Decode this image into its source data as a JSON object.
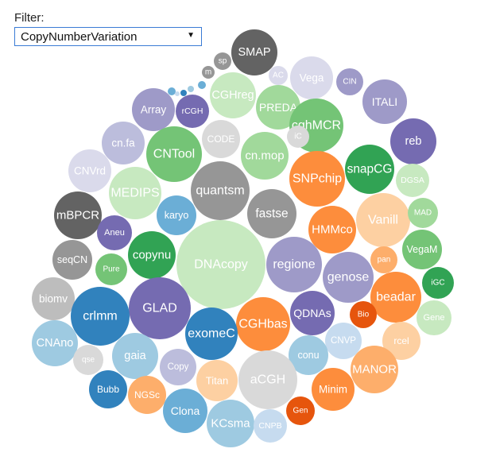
{
  "filter": {
    "label": "Filter:",
    "selected": "CopyNumberVariation"
  },
  "chart_data": {
    "type": "bubble",
    "bubbles": [
      {
        "label": "SMAP",
        "color": "#636363"
      },
      {
        "label": "sp",
        "color": "#969696"
      },
      {
        "label": "m",
        "color": "#969696"
      },
      {
        "label": "AC",
        "color": "#dadaeb"
      },
      {
        "label": "Vega",
        "color": "#dadaeb"
      },
      {
        "label": "CIN",
        "color": "#9e9ac8"
      },
      {
        "label": "ITALI",
        "color": "#9e9ac8"
      },
      {
        "label": "CGHreg",
        "color": "#c7e9c0"
      },
      {
        "label": "PREDA",
        "color": "#a1d99b"
      },
      {
        "label": "Array",
        "color": "#9e9ac8"
      },
      {
        "label": "rCGH",
        "color": "#756bb1"
      },
      {
        "label": "cghMCR",
        "color": "#74c476"
      },
      {
        "label": "reb",
        "color": "#756bb1"
      },
      {
        "label": "cn.fa",
        "color": "#bcbddc"
      },
      {
        "label": "CODE",
        "color": "#d9d9d9"
      },
      {
        "label": "iC",
        "color": "#d9d9d9"
      },
      {
        "label": "CNTool",
        "color": "#74c476"
      },
      {
        "label": "cn.mop",
        "color": "#a1d99b"
      },
      {
        "label": "CNVrd",
        "color": "#dadaeb"
      },
      {
        "label": "SNPchip",
        "color": "#fd8d3c"
      },
      {
        "label": "snapCG",
        "color": "#31a354"
      },
      {
        "label": "DGSA",
        "color": "#c7e9c0"
      },
      {
        "label": "MEDIPS",
        "color": "#c7e9c0"
      },
      {
        "label": "quantsm",
        "color": "#969696"
      },
      {
        "label": "mBPCR",
        "color": "#636363"
      },
      {
        "label": "karyo",
        "color": "#6baed6"
      },
      {
        "label": "fastse",
        "color": "#969696"
      },
      {
        "label": "Vanill",
        "color": "#fdd0a2"
      },
      {
        "label": "MAD",
        "color": "#a1d99b"
      },
      {
        "label": "Aneu",
        "color": "#756bb1"
      },
      {
        "label": "HMMco",
        "color": "#fd8d3c"
      },
      {
        "label": "seqCN",
        "color": "#969696"
      },
      {
        "label": "copynu",
        "color": "#31a354"
      },
      {
        "label": "DNAcopy",
        "color": "#c7e9c0"
      },
      {
        "label": "regione",
        "color": "#9e9ac8"
      },
      {
        "label": "pan",
        "color": "#fdae6b"
      },
      {
        "label": "VegaM",
        "color": "#74c476"
      },
      {
        "label": "Pure",
        "color": "#74c476"
      },
      {
        "label": "genose",
        "color": "#9e9ac8"
      },
      {
        "label": "iGC",
        "color": "#31a354"
      },
      {
        "label": "biomv",
        "color": "#bdbdbd"
      },
      {
        "label": "GLAD",
        "color": "#756bb1"
      },
      {
        "label": "beadar",
        "color": "#fd8d3c"
      },
      {
        "label": "crlmm",
        "color": "#3182bd"
      },
      {
        "label": "QDNAs",
        "color": "#756bb1"
      },
      {
        "label": "Bio",
        "color": "#e6550d"
      },
      {
        "label": "Gene",
        "color": "#c7e9c0"
      },
      {
        "label": "CGHbas",
        "color": "#fd8d3c"
      },
      {
        "label": "exomeC",
        "color": "#3182bd"
      },
      {
        "label": "CNAno",
        "color": "#9ecae1"
      },
      {
        "label": "CNVP",
        "color": "#c6dbef"
      },
      {
        "label": "rcel",
        "color": "#fdd0a2"
      },
      {
        "label": "gaia",
        "color": "#9ecae1"
      },
      {
        "label": "conu",
        "color": "#9ecae1"
      },
      {
        "label": "qse",
        "color": "#d9d9d9"
      },
      {
        "label": "Copy",
        "color": "#bcbddc"
      },
      {
        "label": "aCGH",
        "color": "#d9d9d9"
      },
      {
        "label": "MANOR",
        "color": "#fdae6b"
      },
      {
        "label": "Titan",
        "color": "#fdd0a2"
      },
      {
        "label": "Bubb",
        "color": "#3182bd"
      },
      {
        "label": "NGSc",
        "color": "#fdae6b"
      },
      {
        "label": "Minim",
        "color": "#fd8d3c"
      },
      {
        "label": "Clona",
        "color": "#6baed6"
      },
      {
        "label": "Gen",
        "color": "#e6550d"
      },
      {
        "label": "KCsma",
        "color": "#9ecae1"
      },
      {
        "label": "CNPB",
        "color": "#c6dbef"
      },
      {
        "label": "",
        "color": "#6baed6"
      },
      {
        "label": "",
        "color": "#3182bd"
      },
      {
        "label": "",
        "color": "#9ecae1"
      },
      {
        "label": "",
        "color": "#6baed6"
      },
      {
        "label": "",
        "color": "#c6dbef"
      }
    ]
  }
}
